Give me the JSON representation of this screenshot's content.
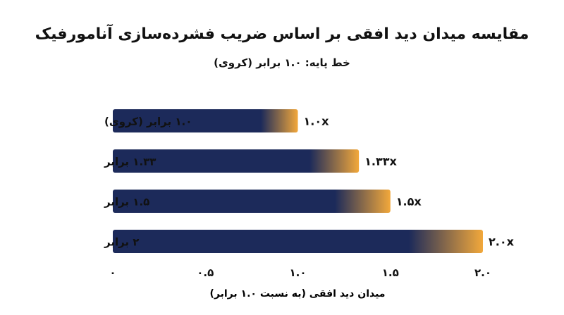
{
  "chart_data": {
    "type": "bar",
    "orientation": "horizontal",
    "title": "مقایسه میدان دید افقی بر اساس ضریب فشرده‌سازی آنامورفیک",
    "subtitle": "خط پایه: ۱.۰ برابر (کروی)",
    "xlabel": "میدان دید افقی (به نسبت ۱.۰ برابر)",
    "ylabel": "",
    "xlim": [
      0,
      2.0
    ],
    "x_ticks": [
      0,
      0.5,
      1.0,
      1.5,
      2.0
    ],
    "x_tick_labels": [
      "۰",
      "۰.۵",
      "۱.۰",
      "۱.۵",
      "۲.۰"
    ],
    "categories": [
      "۱.۰ برابر (کروی)",
      "۱.۳۳ برابر",
      "۱.۵ برابر",
      "۲ برابر"
    ],
    "values": [
      1.0,
      1.33,
      1.5,
      2.0
    ],
    "value_labels": [
      "۱.۰x",
      "۱.۳۳x",
      "۱.۵x",
      "۲.۰x"
    ],
    "grid": false,
    "legend": "none",
    "colors": {
      "bar_main": "#1c2a5a",
      "bar_accent": "#f2a83b",
      "text": "#111111"
    }
  }
}
